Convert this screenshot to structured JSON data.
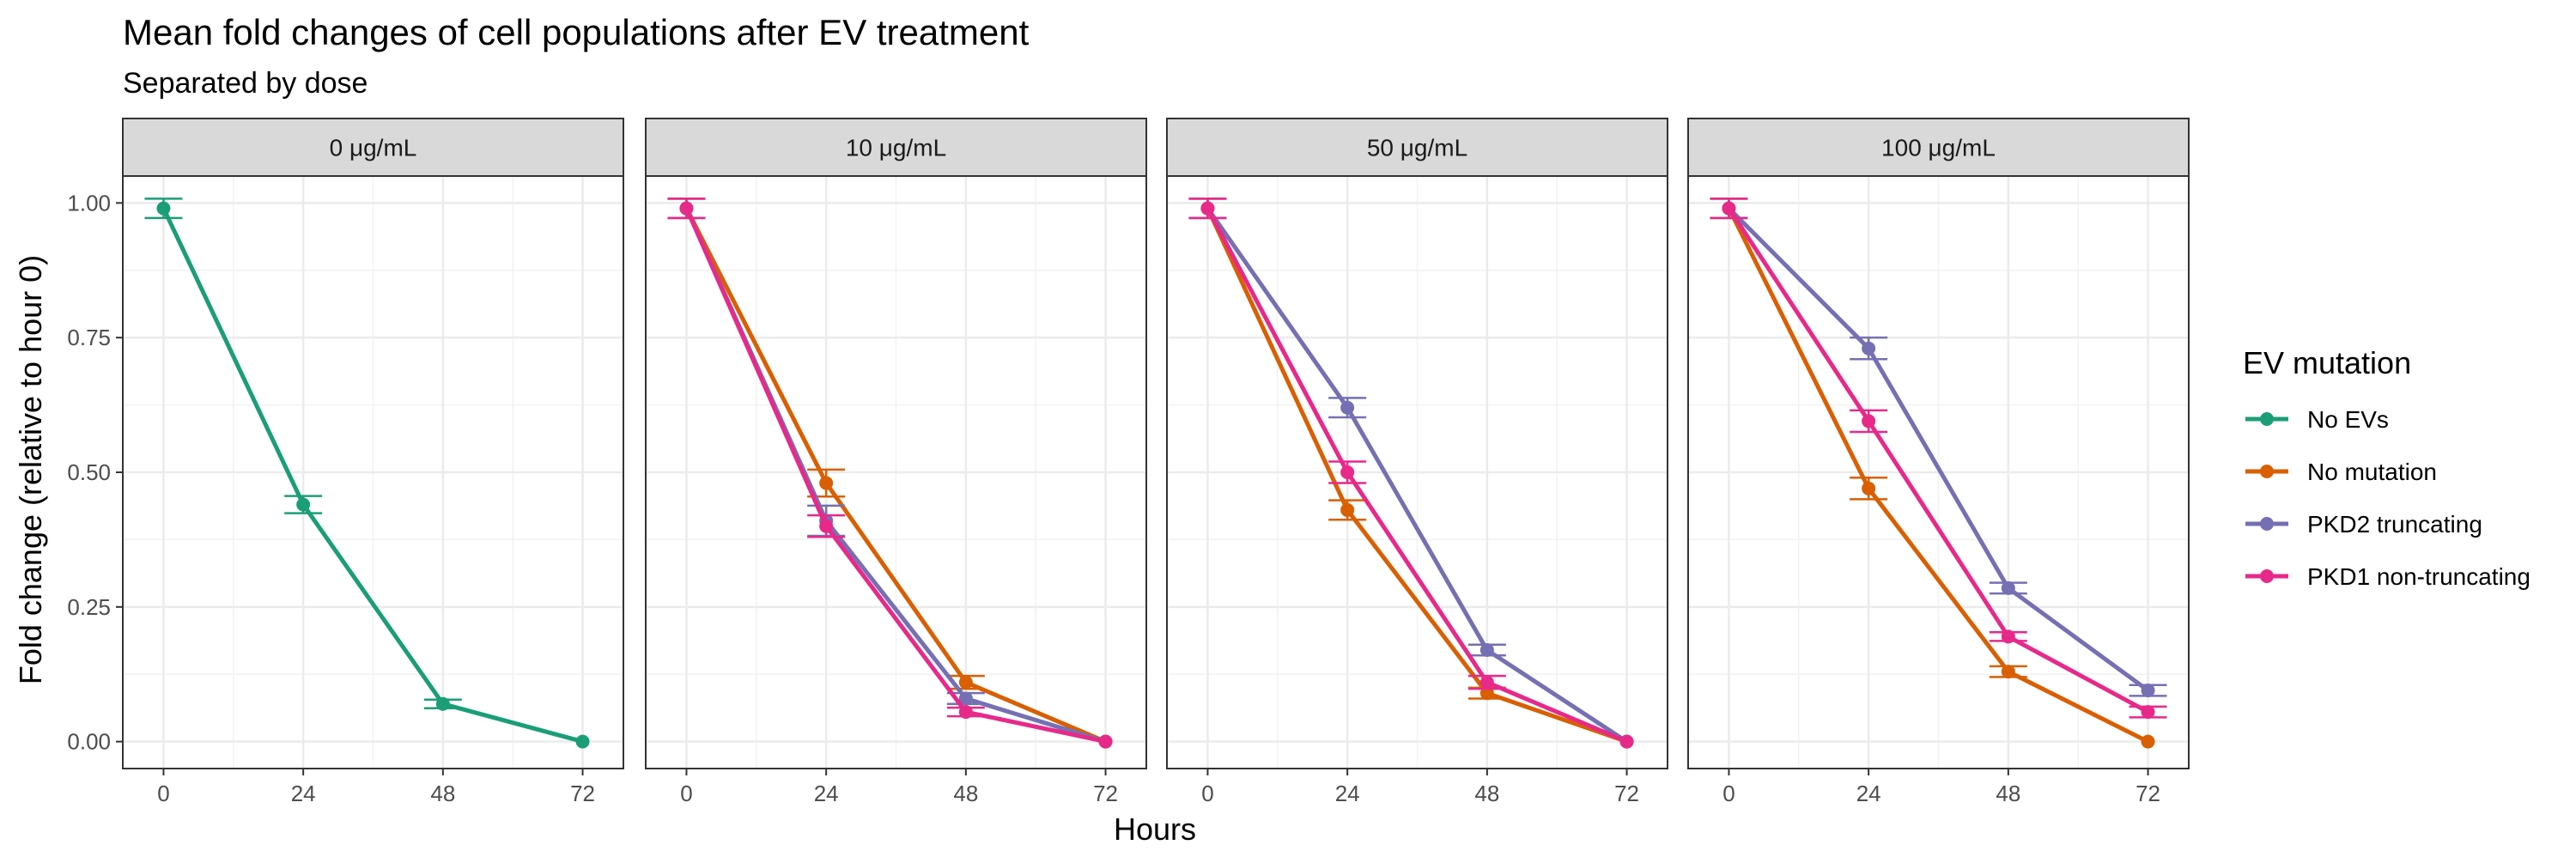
{
  "chart_data": {
    "type": "line",
    "title": "Mean fold changes of cell populations after EV treatment",
    "subtitle": "Separated by dose",
    "xlabel": "Hours",
    "ylabel": "Fold change (relative to hour 0)",
    "x_ticks": [
      0,
      24,
      48,
      72
    ],
    "xlim": [
      -7,
      79
    ],
    "y_ticks": [
      0,
      0.25,
      0.5,
      0.75,
      1
    ],
    "y_tick_labels": [
      "0.00",
      "0.25",
      "0.50",
      "0.75",
      "1.00"
    ],
    "ylim": [
      -0.05,
      1.05
    ],
    "grid": true,
    "legend": {
      "title": "EV mutation",
      "placement": "right",
      "entries": [
        {
          "name": "No EVs",
          "color": "#1b9e77"
        },
        {
          "name": "No mutation",
          "color": "#d95f02"
        },
        {
          "name": "PKD2 truncating",
          "color": "#7570b3"
        },
        {
          "name": "PKD1 non-truncating",
          "color": "#e7298a"
        }
      ]
    },
    "panels": [
      {
        "label": "0 μg/mL",
        "series": [
          {
            "name": "No EVs",
            "color": "#1b9e77",
            "x": [
              0,
              24,
              48,
              72
            ],
            "y": [
              0.99,
              0.44,
              0.07,
              0.0
            ],
            "err": [
              0.018,
              0.016,
              0.008,
              0.0
            ]
          }
        ]
      },
      {
        "label": "10 μg/mL",
        "series": [
          {
            "name": "No mutation",
            "color": "#d95f02",
            "x": [
              0,
              24,
              48,
              72
            ],
            "y": [
              0.99,
              0.48,
              0.11,
              0.0
            ],
            "err": [
              0.018,
              0.025,
              0.012,
              0.0
            ]
          },
          {
            "name": "PKD2 truncating",
            "color": "#7570b3",
            "x": [
              0,
              24,
              48,
              72
            ],
            "y": [
              0.99,
              0.41,
              0.08,
              0.0
            ],
            "err": [
              0.018,
              0.028,
              0.01,
              0.0
            ]
          },
          {
            "name": "PKD1 non-truncating",
            "color": "#e7298a",
            "x": [
              0,
              24,
              48,
              72
            ],
            "y": [
              0.99,
              0.4,
              0.055,
              0.0
            ],
            "err": [
              0.018,
              0.02,
              0.008,
              0.0
            ]
          }
        ]
      },
      {
        "label": "50 μg/mL",
        "series": [
          {
            "name": "No mutation",
            "color": "#d95f02",
            "x": [
              0,
              24,
              48,
              72
            ],
            "y": [
              0.99,
              0.43,
              0.09,
              0.0
            ],
            "err": [
              0.018,
              0.018,
              0.01,
              0.0
            ]
          },
          {
            "name": "PKD2 truncating",
            "color": "#7570b3",
            "x": [
              0,
              24,
              48,
              72
            ],
            "y": [
              0.99,
              0.62,
              0.17,
              0.0
            ],
            "err": [
              0.018,
              0.018,
              0.01,
              0.0
            ]
          },
          {
            "name": "PKD1 non-truncating",
            "color": "#e7298a",
            "x": [
              0,
              24,
              48,
              72
            ],
            "y": [
              0.99,
              0.5,
              0.11,
              0.0
            ],
            "err": [
              0.018,
              0.02,
              0.012,
              0.0
            ]
          }
        ]
      },
      {
        "label": "100 μg/mL",
        "series": [
          {
            "name": "No mutation",
            "color": "#d95f02",
            "x": [
              0,
              24,
              48,
              72
            ],
            "y": [
              0.99,
              0.47,
              0.13,
              0.0
            ],
            "err": [
              0.018,
              0.02,
              0.01,
              0.0
            ]
          },
          {
            "name": "PKD2 truncating",
            "color": "#7570b3",
            "x": [
              0,
              24,
              48,
              72
            ],
            "y": [
              0.99,
              0.73,
              0.285,
              0.095
            ],
            "err": [
              0.018,
              0.02,
              0.01,
              0.01
            ]
          },
          {
            "name": "PKD1 non-truncating",
            "color": "#e7298a",
            "x": [
              0,
              24,
              48,
              72
            ],
            "y": [
              0.99,
              0.595,
              0.195,
              0.055
            ],
            "err": [
              0.018,
              0.02,
              0.008,
              0.01
            ]
          }
        ]
      }
    ]
  }
}
